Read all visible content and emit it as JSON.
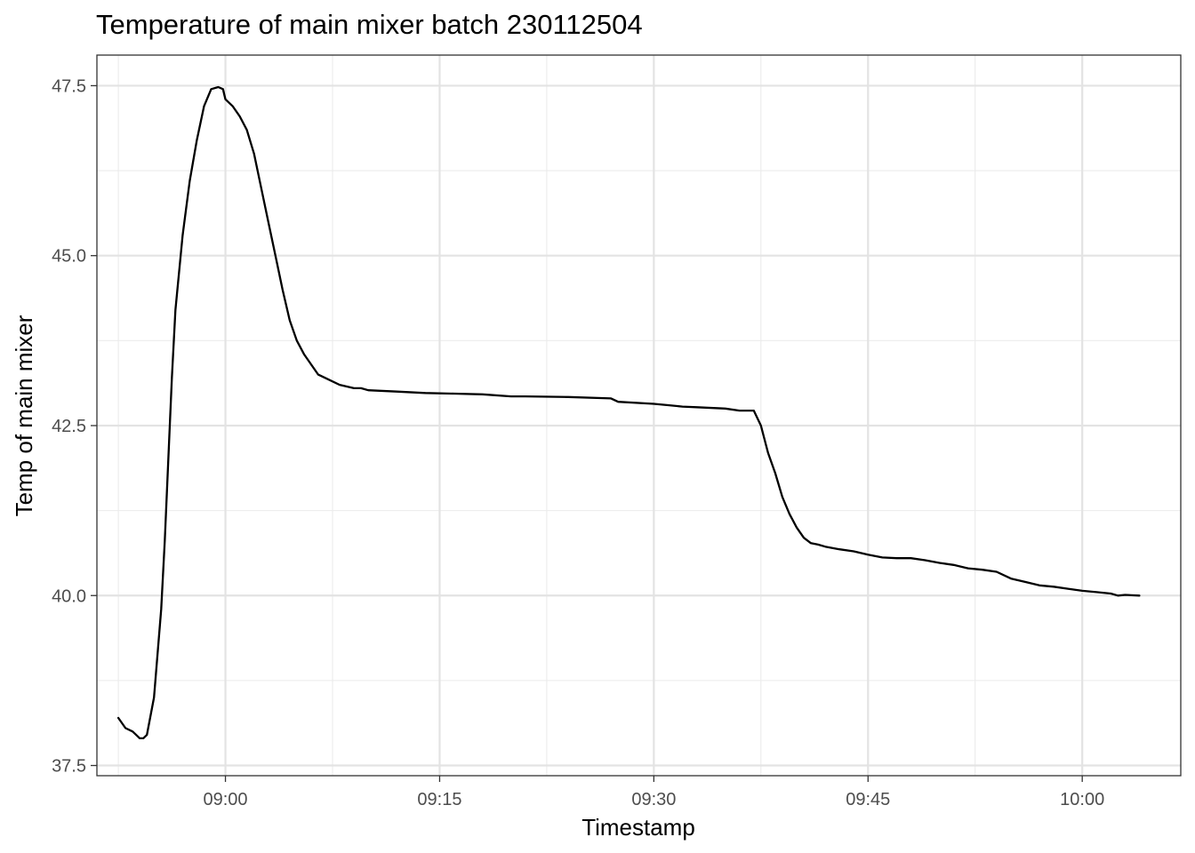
{
  "chart_data": {
    "type": "line",
    "title": "Temperature of main mixer batch 230112504",
    "xlabel": "Timestamp",
    "ylabel": "Temp of main mixer",
    "x_ticks": [
      {
        "minutes": 540,
        "label": "09:00"
      },
      {
        "minutes": 555,
        "label": "09:15"
      },
      {
        "minutes": 570,
        "label": "09:30"
      },
      {
        "minutes": 585,
        "label": "09:45"
      },
      {
        "minutes": 600,
        "label": "10:00"
      }
    ],
    "y_ticks": [
      {
        "value": 37.5,
        "label": "37.5"
      },
      {
        "value": 40.0,
        "label": "40.0"
      },
      {
        "value": 42.5,
        "label": "42.5"
      },
      {
        "value": 45.0,
        "label": "45.0"
      },
      {
        "value": 47.5,
        "label": "47.5"
      }
    ],
    "xlim": [
      531.0,
      606.9
    ],
    "ylim": [
      37.35,
      47.95
    ],
    "grid": true,
    "legend": "none",
    "line_color": "#000000",
    "series": [
      {
        "x_clock": [
          "08:52:30",
          "08:53:00",
          "08:53:30",
          "08:54:00",
          "08:54:15",
          "08:54:30",
          "08:55:00",
          "08:55:30",
          "08:55:45",
          "08:56:00",
          "08:56:15",
          "08:56:30",
          "08:57:00",
          "08:57:30",
          "08:58:00",
          "08:58:30",
          "08:59:00",
          "08:59:30",
          "08:59:50",
          "09:00:00",
          "09:00:30",
          "09:01:00",
          "09:01:30",
          "09:02:00",
          "09:02:30",
          "09:03:00",
          "09:03:30",
          "09:04:00",
          "09:04:30",
          "09:05:00",
          "09:05:30",
          "09:06:00",
          "09:06:30",
          "09:07:00",
          "09:08:00",
          "09:09:00",
          "09:09:30",
          "09:10:00",
          "09:12:00",
          "09:14:00",
          "09:16:00",
          "09:18:00",
          "09:20:00",
          "09:21:00",
          "09:24:00",
          "09:27:00",
          "09:27:30",
          "09:30:00",
          "09:31:00",
          "09:32:00",
          "09:33:00",
          "09:35:00",
          "09:36:00",
          "09:37:00",
          "09:37:30",
          "09:38:00",
          "09:38:30",
          "09:39:00",
          "09:39:30",
          "09:40:00",
          "09:40:30",
          "09:41:00",
          "09:41:30",
          "09:42:00",
          "09:42:30",
          "09:43:00",
          "09:44:00",
          "09:45:00",
          "09:46:00",
          "09:47:00",
          "09:48:00",
          "09:49:00",
          "09:50:00",
          "09:51:00",
          "09:52:00",
          "09:53:00",
          "09:54:00",
          "09:55:00",
          "09:56:00",
          "09:57:00",
          "09:58:00",
          "09:59:00",
          "10:00:00",
          "10:01:00",
          "10:02:00",
          "10:02:30",
          "10:03:00",
          "10:04:00"
        ],
        "x": [
          532.5,
          533.0,
          533.5,
          534.0,
          534.25,
          534.5,
          535.0,
          535.5,
          535.75,
          536.0,
          536.25,
          536.5,
          537.0,
          537.5,
          538.0,
          538.5,
          539.0,
          539.5,
          539.83,
          540.0,
          540.5,
          541.0,
          541.5,
          542.0,
          542.5,
          543.0,
          543.5,
          544.0,
          544.5,
          545.0,
          545.5,
          546.0,
          546.5,
          547.0,
          548.0,
          549.0,
          549.5,
          550.0,
          552.0,
          554.0,
          556.0,
          558.0,
          560.0,
          561.0,
          564.0,
          567.0,
          567.5,
          570.0,
          571.0,
          572.0,
          573.0,
          575.0,
          576.0,
          577.0,
          577.5,
          578.0,
          578.5,
          579.0,
          579.5,
          580.0,
          580.5,
          581.0,
          581.5,
          582.0,
          582.5,
          583.0,
          584.0,
          585.0,
          586.0,
          587.0,
          588.0,
          589.0,
          590.0,
          591.0,
          592.0,
          593.0,
          594.0,
          595.0,
          596.0,
          597.0,
          598.0,
          599.0,
          600.0,
          601.0,
          602.0,
          602.5,
          603.0,
          604.0
        ],
        "y": [
          38.2,
          38.05,
          38.0,
          37.9,
          37.9,
          37.95,
          38.5,
          39.8,
          40.8,
          42.0,
          43.2,
          44.2,
          45.3,
          46.1,
          46.7,
          47.2,
          47.45,
          47.48,
          47.45,
          47.3,
          47.2,
          47.05,
          46.85,
          46.5,
          46.0,
          45.5,
          45.0,
          44.5,
          44.05,
          43.75,
          43.55,
          43.4,
          43.25,
          43.2,
          43.1,
          43.05,
          43.05,
          43.02,
          43.0,
          42.98,
          42.97,
          42.96,
          42.93,
          42.93,
          42.92,
          42.9,
          42.85,
          42.82,
          42.8,
          42.78,
          42.77,
          42.75,
          42.72,
          42.72,
          42.5,
          42.1,
          41.8,
          41.45,
          41.2,
          41.0,
          40.85,
          40.77,
          40.75,
          40.72,
          40.7,
          40.68,
          40.65,
          40.6,
          40.56,
          40.55,
          40.55,
          40.52,
          40.48,
          40.45,
          40.4,
          40.38,
          40.35,
          40.25,
          40.2,
          40.15,
          40.13,
          40.1,
          40.07,
          40.05,
          40.03,
          40.0,
          40.01,
          40.0
        ]
      }
    ]
  }
}
